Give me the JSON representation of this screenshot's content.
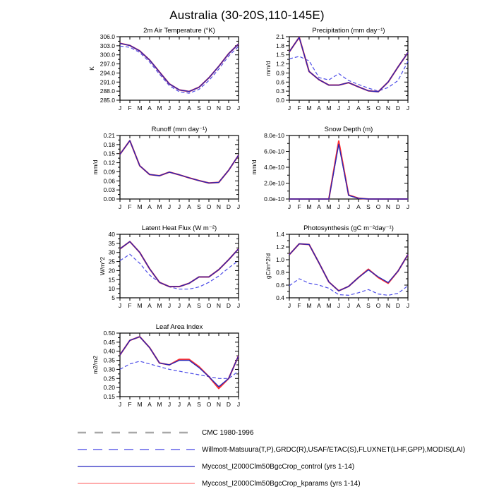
{
  "page": {
    "title": "Australia (30-20S,110-145E)"
  },
  "chart_data": [
    {
      "id": "air-temperature",
      "type": "line",
      "title": "2m Air Temperature (°K)",
      "ylabel": "K",
      "ylim": [
        285.0,
        306.0
      ],
      "ytick_labels": [
        "285.0",
        "288.0",
        "291.0",
        "294.0",
        "297.0",
        "300.0",
        "303.0",
        "306.0"
      ],
      "categories": [
        "J",
        "F",
        "M",
        "A",
        "M",
        "J",
        "J",
        "A",
        "S",
        "O",
        "N",
        "D",
        "J"
      ],
      "series": [
        {
          "name": "obs-willmott-matsuura",
          "color": "#4d4de8",
          "dash": true,
          "values": [
            302.9,
            302.5,
            300.8,
            297.6,
            293.6,
            289.8,
            287.8,
            287.3,
            288.6,
            291.5,
            295.3,
            299.6,
            302.8
          ]
        },
        {
          "name": "kparams",
          "color": "#ff3030",
          "dash": false,
          "values": [
            303.8,
            303.1,
            301.3,
            298.3,
            294.3,
            290.4,
            288.4,
            287.9,
            289.3,
            292.4,
            296.2,
            300.4,
            303.6
          ]
        },
        {
          "name": "control",
          "color": "#2626b8",
          "dash": false,
          "values": [
            303.8,
            303.1,
            301.3,
            298.3,
            294.3,
            290.4,
            288.4,
            287.9,
            289.3,
            292.4,
            296.2,
            300.4,
            303.6
          ]
        }
      ]
    },
    {
      "id": "precipitation",
      "type": "line",
      "title": "Precipitation (mm day⁻¹)",
      "ylabel": "mm/d",
      "ylim": [
        0.0,
        2.1
      ],
      "ytick_labels": [
        "0.0",
        "0.3",
        "0.6",
        "0.9",
        "1.2",
        "1.5",
        "1.8",
        "2.1"
      ],
      "categories": [
        "J",
        "F",
        "M",
        "A",
        "M",
        "J",
        "J",
        "A",
        "S",
        "O",
        "N",
        "D",
        "J"
      ],
      "series": [
        {
          "name": "obs-willmott-matsuura",
          "color": "#4d4de8",
          "dash": true,
          "values": [
            1.37,
            1.45,
            1.3,
            0.75,
            0.67,
            0.88,
            0.65,
            0.52,
            0.4,
            0.3,
            0.42,
            0.65,
            1.28
          ]
        },
        {
          "name": "kparams",
          "color": "#ff3030",
          "dash": false,
          "values": [
            1.6,
            2.08,
            0.95,
            0.68,
            0.5,
            0.5,
            0.58,
            0.44,
            0.31,
            0.28,
            0.6,
            1.1,
            1.57
          ]
        },
        {
          "name": "control",
          "color": "#2626b8",
          "dash": false,
          "values": [
            1.6,
            2.08,
            0.95,
            0.68,
            0.5,
            0.5,
            0.58,
            0.44,
            0.31,
            0.28,
            0.6,
            1.1,
            1.57
          ]
        }
      ]
    },
    {
      "id": "runoff",
      "type": "line",
      "title": "Runoff (mm day⁻¹)",
      "ylabel": "mm/d",
      "ylim": [
        0.0,
        0.21
      ],
      "ytick_labels": [
        "0.00",
        "0.03",
        "0.06",
        "0.09",
        "0.12",
        "0.15",
        "0.18",
        "0.21"
      ],
      "categories": [
        "J",
        "F",
        "M",
        "A",
        "M",
        "J",
        "J",
        "A",
        "S",
        "O",
        "N",
        "D",
        "J"
      ],
      "series": [
        {
          "name": "kparams",
          "color": "#ff3030",
          "dash": false,
          "values": [
            0.148,
            0.193,
            0.11,
            0.081,
            0.077,
            0.089,
            0.08,
            0.07,
            0.061,
            0.053,
            0.055,
            0.095,
            0.145
          ]
        },
        {
          "name": "control",
          "color": "#2626b8",
          "dash": false,
          "values": [
            0.148,
            0.193,
            0.11,
            0.081,
            0.077,
            0.089,
            0.08,
            0.07,
            0.061,
            0.053,
            0.055,
            0.095,
            0.145
          ]
        }
      ]
    },
    {
      "id": "snow-depth",
      "type": "line",
      "title": "Snow Depth (m)",
      "ylabel": "mm/d",
      "ylim": [
        0.0,
        8e-10
      ],
      "ytick_labels": [
        "0.0e-10",
        "2.0e-10",
        "4.0e-10",
        "6.0e-10",
        "8.0e-10"
      ],
      "categories": [
        "J",
        "F",
        "M",
        "A",
        "M",
        "J",
        "J",
        "A",
        "S",
        "O",
        "N",
        "D",
        "J"
      ],
      "series": [
        {
          "name": "kparams",
          "color": "#ff3030",
          "dash": false,
          "values": [
            0,
            0,
            0,
            0,
            0,
            7.3e-10,
            5e-11,
            1e-11,
            0,
            0,
            0,
            0,
            0
          ]
        },
        {
          "name": "control",
          "color": "#2626b8",
          "dash": false,
          "values": [
            0,
            0,
            0,
            0,
            0,
            6.9e-10,
            4.5e-11,
            8e-12,
            0,
            0,
            0,
            0,
            0
          ]
        }
      ]
    },
    {
      "id": "latent-heat-flux",
      "type": "line",
      "title": "Latent Heat Flux (W m⁻²)",
      "ylabel": "W/m^2",
      "ylim": [
        5,
        40
      ],
      "ytick_labels": [
        "5",
        "10",
        "15",
        "20",
        "25",
        "30",
        "35",
        "40"
      ],
      "categories": [
        "J",
        "F",
        "M",
        "A",
        "M",
        "J",
        "J",
        "A",
        "S",
        "O",
        "N",
        "D",
        "J"
      ],
      "series": [
        {
          "name": "obs-fluxnet",
          "color": "#4d4de8",
          "dash": true,
          "values": [
            25.5,
            29.0,
            24.0,
            17.5,
            13.5,
            11.0,
            9.8,
            9.8,
            11.0,
            13.5,
            17.0,
            21.5,
            25.5
          ]
        },
        {
          "name": "kparams",
          "color": "#ff3030",
          "dash": false,
          "values": [
            32.0,
            36.0,
            30.0,
            21.0,
            13.5,
            11.2,
            11.2,
            13.0,
            16.5,
            16.5,
            20.5,
            26.0,
            32.0
          ]
        },
        {
          "name": "control",
          "color": "#2626b8",
          "dash": false,
          "values": [
            32.0,
            36.0,
            30.0,
            21.0,
            13.5,
            11.2,
            11.2,
            13.0,
            16.5,
            16.5,
            20.5,
            26.0,
            32.0
          ]
        }
      ]
    },
    {
      "id": "photosynthesis",
      "type": "line",
      "title": "Photosynthesis (gC m⁻²day⁻¹)",
      "ylabel": "gC/m^2/d",
      "ylim": [
        0.4,
        1.4
      ],
      "ytick_labels": [
        "0.4",
        "0.6",
        "0.8",
        "1.0",
        "1.2",
        "1.4"
      ],
      "categories": [
        "J",
        "F",
        "M",
        "A",
        "M",
        "J",
        "J",
        "A",
        "S",
        "O",
        "N",
        "D",
        "J"
      ],
      "series": [
        {
          "name": "obs-fluxnet",
          "color": "#4d4de8",
          "dash": true,
          "values": [
            0.59,
            0.7,
            0.63,
            0.6,
            0.55,
            0.45,
            0.44,
            0.48,
            0.53,
            0.46,
            0.44,
            0.47,
            0.59
          ]
        },
        {
          "name": "kparams",
          "color": "#ff3030",
          "dash": false,
          "values": [
            1.08,
            1.25,
            1.24,
            0.95,
            0.65,
            0.51,
            0.58,
            0.72,
            0.85,
            0.72,
            0.63,
            0.82,
            1.08
          ]
        },
        {
          "name": "control",
          "color": "#2626b8",
          "dash": false,
          "values": [
            1.08,
            1.25,
            1.24,
            0.95,
            0.65,
            0.51,
            0.58,
            0.72,
            0.84,
            0.73,
            0.64,
            0.82,
            1.08
          ]
        }
      ]
    },
    {
      "id": "leaf-area-index",
      "type": "line",
      "title": "Leaf Area Index",
      "ylabel": "m2/m2",
      "ylim": [
        0.15,
        0.5
      ],
      "ytick_labels": [
        "0.15",
        "0.20",
        "0.25",
        "0.30",
        "0.35",
        "0.40",
        "0.45",
        "0.50"
      ],
      "categories": [
        "J",
        "F",
        "M",
        "A",
        "M",
        "J",
        "J",
        "A",
        "S",
        "O",
        "N",
        "D",
        "J"
      ],
      "series": [
        {
          "name": "obs-modis",
          "color": "#4d4de8",
          "dash": true,
          "values": [
            0.3,
            0.33,
            0.345,
            0.33,
            0.315,
            0.3,
            0.29,
            0.28,
            0.27,
            0.26,
            0.25,
            0.25,
            0.29
          ]
        },
        {
          "name": "kparams",
          "color": "#ff3030",
          "dash": false,
          "values": [
            0.38,
            0.46,
            0.48,
            0.42,
            0.335,
            0.325,
            0.355,
            0.355,
            0.315,
            0.26,
            0.195,
            0.25,
            0.375
          ]
        },
        {
          "name": "control",
          "color": "#2626b8",
          "dash": false,
          "values": [
            0.38,
            0.46,
            0.48,
            0.42,
            0.335,
            0.325,
            0.35,
            0.35,
            0.31,
            0.26,
            0.205,
            0.25,
            0.375
          ]
        }
      ]
    }
  ],
  "legend": {
    "items": [
      {
        "label": "CMC 1980-1996",
        "color": "#a8a8a8",
        "style": "dashed",
        "thick": true
      },
      {
        "label": "Willmott-Matsuura(T,P),GRDC(R),USAF/ETAC(S),FLUXNET(LHF,GPP),MODIS(LAI)",
        "color": "#6262e8",
        "style": "dashed",
        "thick": false
      },
      {
        "label": "Myccost_I2000Clm50BgcCrop_control (yrs 1-14)",
        "color": "#4848cc",
        "style": "solid",
        "thick": false
      },
      {
        "label": "Myccost_I2000Clm50BgcCrop_kparams (yrs 1-14)",
        "color": "#ff9090",
        "style": "solid",
        "thick": false
      }
    ]
  }
}
